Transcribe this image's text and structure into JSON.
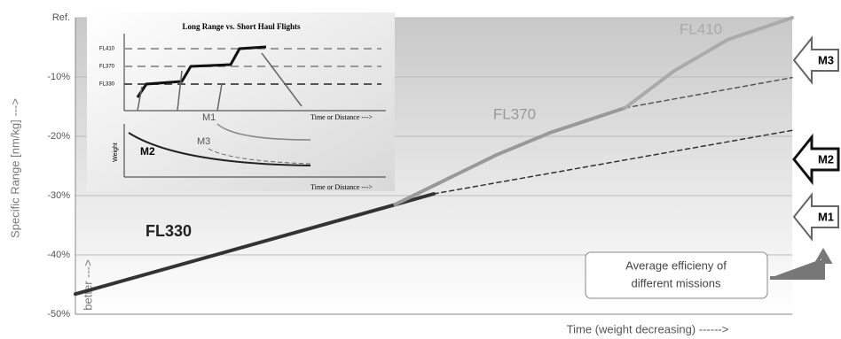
{
  "chart_data": {
    "type": "line",
    "ylabel": "Specific Range [nm/kg] --->",
    "xlabel": "Time (weight decreasing) ------>",
    "side_note": "better --->",
    "ylim": [
      -50,
      0
    ],
    "yticks": [
      {
        "value": 0,
        "label": "Ref."
      },
      {
        "value": -10,
        "label": "-10%"
      },
      {
        "value": -20,
        "label": "-20%"
      },
      {
        "value": -30,
        "label": "-30%"
      },
      {
        "value": -40,
        "label": "-40%"
      },
      {
        "value": -50,
        "label": "-50%"
      }
    ],
    "xlim": [
      0,
      100
    ],
    "grid": true,
    "series": [
      {
        "name": "FL330",
        "color": "#333333",
        "x": [
          0,
          50
        ],
        "values": [
          -46.6,
          -29.7
        ]
      },
      {
        "color": "#333333",
        "dashed": true,
        "x": [
          50,
          100
        ],
        "values": [
          -29.7,
          -19
        ]
      },
      {
        "name": "FL370",
        "color": "#999999",
        "x": [
          44.6,
          58.8,
          66.2,
          76.7
        ],
        "values": [
          -31.5,
          -23.1,
          -19.4,
          -15.2
        ]
      },
      {
        "color": "#555555",
        "dashed": true,
        "x": [
          76.7,
          100
        ],
        "values": [
          -15.2,
          -10.1
        ]
      },
      {
        "name": "FL410",
        "color": "#aaaaaa",
        "x": [
          76.7,
          83.5,
          91,
          100
        ],
        "values": [
          -15.2,
          -9,
          -3.7,
          0
        ]
      }
    ],
    "mission_arrows": [
      "M3",
      "M2",
      "M1"
    ],
    "annotation": [
      "Average efficieny of",
      "different missions"
    ],
    "inset": {
      "title": "Long Range vs. Short Haul Flights",
      "levels": [
        "FL410",
        "FL370",
        "FL330"
      ],
      "x_label_top": "Time or Distance --->",
      "x_label_bottom": "Time or Distance --->",
      "y_label_bottom": "Weight",
      "missions": [
        "M1",
        "M3",
        "M2"
      ]
    }
  }
}
